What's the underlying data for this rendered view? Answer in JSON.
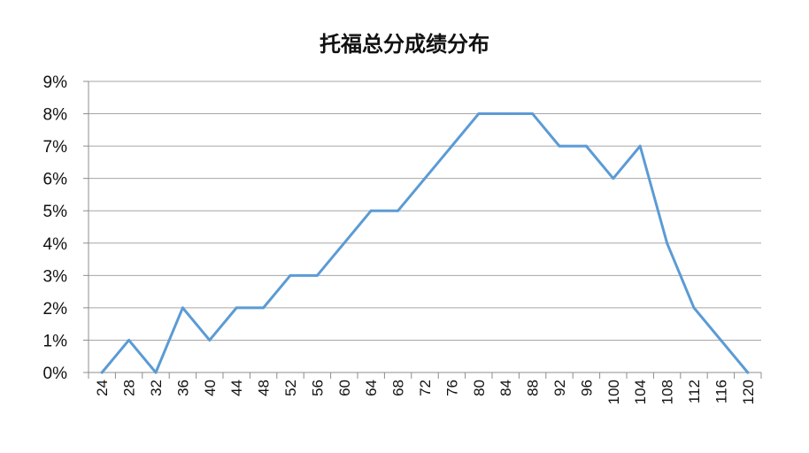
{
  "chart_data": {
    "type": "line",
    "title": "托福总分成绩分布",
    "xlabel": "",
    "ylabel": "",
    "x": [
      24,
      28,
      32,
      36,
      40,
      44,
      48,
      52,
      56,
      60,
      64,
      68,
      72,
      76,
      80,
      84,
      88,
      92,
      96,
      100,
      104,
      108,
      112,
      116,
      120
    ],
    "series": [
      {
        "values": [
          0,
          1,
          0,
          2,
          1,
          2,
          2,
          3,
          3,
          4,
          5,
          5,
          6,
          7,
          8,
          8,
          8,
          7,
          7,
          6,
          7,
          4,
          2,
          1,
          0
        ]
      }
    ],
    "y_unit": "%",
    "ylim": [
      0,
      9
    ],
    "yticks": [
      "0%",
      "1%",
      "2%",
      "3%",
      "4%",
      "5%",
      "6%",
      "7%",
      "8%",
      "9%"
    ],
    "xticks": [
      "24",
      "28",
      "32",
      "36",
      "40",
      "44",
      "48",
      "52",
      "56",
      "60",
      "64",
      "68",
      "72",
      "76",
      "80",
      "84",
      "88",
      "92",
      "96",
      "100",
      "104",
      "108",
      "112",
      "116",
      "120"
    ],
    "grid": true,
    "legend": "none",
    "line_color": "#5b9bd5"
  }
}
